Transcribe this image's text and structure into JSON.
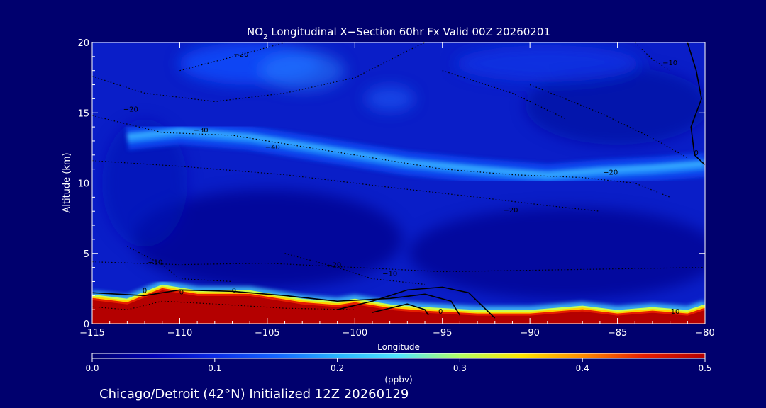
{
  "figure": {
    "title_main": "NO",
    "title_sub": "2",
    "title_rest": " Longitudinal X−Section 60hr  Fx Valid 00Z 20260201",
    "footer": "Chicago/Detroit (42°N) Initialized 12Z 20260129",
    "background": "#00006e"
  },
  "chart_data": {
    "type": "heatmap",
    "title": "NO2 Longitudinal X-Section 60hr  Fx Valid 00Z 20260201",
    "xlabel": "Longitude",
    "ylabel": "Altitude (km)",
    "xlim": [
      -115,
      -80
    ],
    "ylim": [
      0,
      20
    ],
    "x_ticks": [
      -115,
      -110,
      -105,
      -100,
      -95,
      -90,
      -85,
      -80
    ],
    "x_tick_labels": [
      "−115",
      "−110",
      "−105",
      "−100",
      "−95",
      "−90",
      "−85",
      "−80"
    ],
    "y_ticks": [
      0,
      5,
      10,
      15,
      20
    ],
    "y_tick_labels": [
      "0",
      "5",
      "10",
      "15",
      "20"
    ],
    "colorbar": {
      "label": "(ppbv)",
      "range": [
        0.0,
        0.5
      ],
      "ticks": [
        0.0,
        0.1,
        0.2,
        0.3,
        0.4,
        0.5
      ],
      "tick_labels": [
        "0.0",
        "0.1",
        "0.2",
        "0.3",
        "0.4",
        "0.5"
      ],
      "colormap": [
        "#00006e",
        "#0000b4",
        "#0a2ae6",
        "#1464ff",
        "#28b4ff",
        "#50e6ff",
        "#b4ff64",
        "#ffe600",
        "#ff8c00",
        "#e61e00",
        "#b40000"
      ]
    },
    "surface_layer": {
      "x": [
        -115,
        -113,
        -111,
        -109,
        -106,
        -103,
        -101,
        -100,
        -98,
        -96,
        -93,
        -90,
        -87,
        -85,
        -83,
        -81,
        -80
      ],
      "top_km": [
        1.9,
        1.6,
        2.6,
        2.2,
        2.2,
        1.6,
        1.4,
        1.6,
        1.2,
        1.0,
        0.8,
        0.8,
        1.1,
        0.8,
        1.0,
        0.8,
        1.2
      ]
    },
    "upper_band": {
      "x": [
        -113,
        -110,
        -106,
        -103,
        -100,
        -97,
        -93,
        -89,
        -86,
        -83,
        -80
      ],
      "center_km": [
        13.2,
        13.6,
        13.2,
        12.6,
        12.0,
        11.4,
        10.9,
        10.5,
        10.8,
        11.0,
        11.3
      ]
    },
    "contour_labels": [
      {
        "text": "−20",
        "x": -106.5,
        "y": 19.0
      },
      {
        "text": "−20",
        "x": -112.8,
        "y": 15.1
      },
      {
        "text": "−10",
        "x": -82.0,
        "y": 18.4
      },
      {
        "text": "−30",
        "x": -108.8,
        "y": 13.6
      },
      {
        "text": "−40",
        "x": -104.7,
        "y": 12.4
      },
      {
        "text": "−20",
        "x": -85.4,
        "y": 10.6
      },
      {
        "text": "−20",
        "x": -91.1,
        "y": 7.9
      },
      {
        "text": "−10",
        "x": -111.4,
        "y": 4.2
      },
      {
        "text": "−20",
        "x": -101.2,
        "y": 4.0
      },
      {
        "text": "−10",
        "x": -98.0,
        "y": 3.4
      },
      {
        "text": "0",
        "x": -112.0,
        "y": 2.2
      },
      {
        "text": "0",
        "x": -109.9,
        "y": 2.1
      },
      {
        "text": "0",
        "x": -106.9,
        "y": 2.2
      },
      {
        "text": "0",
        "x": -95.1,
        "y": 0.7
      },
      {
        "text": "10",
        "x": -81.7,
        "y": 0.7
      },
      {
        "text": "0",
        "x": -80.5,
        "y": 12.0
      }
    ]
  }
}
